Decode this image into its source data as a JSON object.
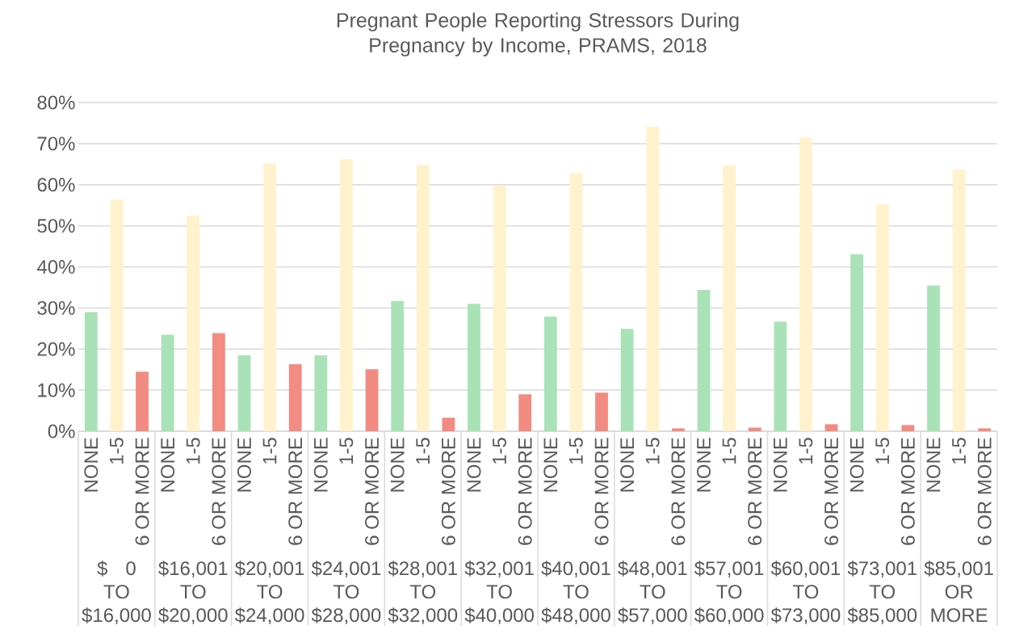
{
  "chart_data": {
    "type": "bar",
    "title": "Pregnant People Reporting Stressors During Pregnancy by Income, PRAMS, 2018",
    "categories": [
      "$ 0 TO $16,000",
      "$16,001 TO $20,000",
      "$20,001 TO $24,000",
      "$24,001 TO $28,000",
      "$28,001 TO $32,000",
      "$32,001 TO $40,000",
      "$40,001 TO $48,000",
      "$48,001 TO $57,000",
      "$57,001 TO $60,000",
      "$60,001 TO $73,000",
      "$73,001 TO $85,000",
      "$85,001 OR MORE"
    ],
    "series": [
      {
        "name": "NONE",
        "color": "#a9e2b6",
        "values": [
          29.0,
          23.5,
          18.5,
          18.5,
          31.7,
          31.0,
          27.9,
          24.9,
          34.4,
          26.7,
          43.1,
          35.5
        ]
      },
      {
        "name": "1-5",
        "color": "#fff2cc",
        "values": [
          56.4,
          52.5,
          65.2,
          66.2,
          64.8,
          59.9,
          62.9,
          74.1,
          64.7,
          71.5,
          55.2,
          63.7
        ]
      },
      {
        "name": "6 OR MORE",
        "color": "#f28b82",
        "values": [
          14.5,
          23.9,
          16.3,
          15.1,
          3.3,
          9.0,
          9.4,
          0.7,
          0.9,
          1.7,
          1.5,
          0.7
        ]
      }
    ],
    "ylim": [
      0,
      80
    ],
    "yticks": [
      {
        "value": 0,
        "label": "0%"
      },
      {
        "value": 10,
        "label": "10%"
      },
      {
        "value": 20,
        "label": "20%"
      },
      {
        "value": 30,
        "label": "30%"
      },
      {
        "value": 40,
        "label": "40%"
      },
      {
        "value": 50,
        "label": "50%"
      },
      {
        "value": 60,
        "label": "60%"
      },
      {
        "value": 70,
        "label": "70%"
      },
      {
        "value": 80,
        "label": "80%"
      }
    ],
    "grid": "y"
  }
}
